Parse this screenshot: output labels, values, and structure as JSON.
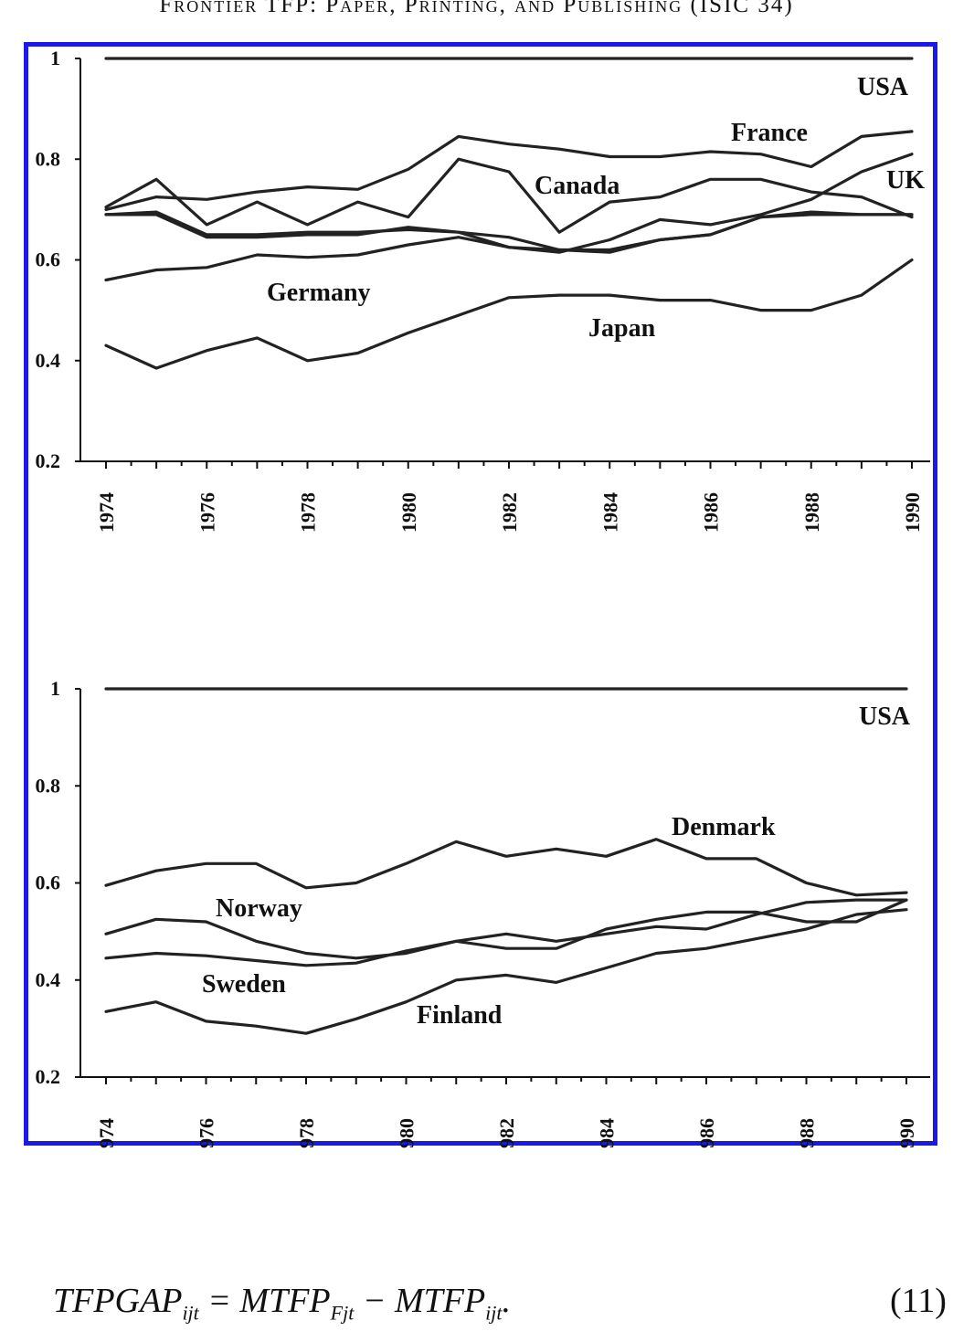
{
  "caption": "Frontier TFP: Paper, Printing, and Publishing (ISIC 34)",
  "chart_data": [
    {
      "type": "line",
      "title": "",
      "xlabel": "",
      "ylabel": "",
      "ylim": [
        0.2,
        1
      ],
      "yticks": [
        "0.2",
        "0.4",
        "0.6",
        "0.8",
        "1"
      ],
      "xtick_labels": [
        "1974",
        "1976",
        "1978",
        "1980",
        "1982",
        "1984",
        "1986",
        "1988",
        "1990"
      ],
      "x": [
        1974,
        1975,
        1976,
        1977,
        1978,
        1979,
        1980,
        1981,
        1982,
        1983,
        1984,
        1985,
        1986,
        1987,
        1988,
        1989,
        1990
      ],
      "series": [
        {
          "name": "USA",
          "values": [
            1,
            1,
            1,
            1,
            1,
            1,
            1,
            1,
            1,
            1,
            1,
            1,
            1,
            1,
            1,
            1,
            1
          ]
        },
        {
          "name": "France",
          "values": [
            0.7,
            0.725,
            0.72,
            0.735,
            0.745,
            0.74,
            0.78,
            0.845,
            0.83,
            0.82,
            0.805,
            0.805,
            0.815,
            0.81,
            0.785,
            0.845,
            0.855
          ]
        },
        {
          "name": "Canada",
          "values": [
            0.705,
            0.76,
            0.67,
            0.715,
            0.67,
            0.715,
            0.685,
            0.8,
            0.775,
            0.655,
            0.715,
            0.725,
            0.76,
            0.76,
            0.735,
            0.725,
            0.685
          ]
        },
        {
          "name": "UK",
          "values": [
            0.69,
            0.69,
            0.645,
            0.645,
            0.65,
            0.65,
            0.665,
            0.655,
            0.625,
            0.615,
            0.64,
            0.68,
            0.67,
            0.69,
            0.72,
            0.775,
            0.81
          ]
        },
        {
          "name": "",
          "values": [
            0.69,
            0.695,
            0.65,
            0.65,
            0.655,
            0.655,
            0.66,
            0.655,
            0.645,
            0.62,
            0.615,
            0.64,
            0.65,
            0.685,
            0.695,
            0.69,
            0.69
          ]
        },
        {
          "name": "Germany",
          "values": [
            0.56,
            0.58,
            0.585,
            0.61,
            0.605,
            0.61,
            0.63,
            0.645,
            0.625,
            0.62,
            0.62,
            0.64,
            0.65,
            0.685,
            0.69,
            0.69,
            0.69
          ]
        },
        {
          "name": "Japan",
          "values": [
            0.43,
            0.385,
            0.42,
            0.445,
            0.4,
            0.415,
            0.455,
            0.49,
            0.525,
            0.53,
            0.53,
            0.52,
            0.52,
            0.5,
            0.5,
            0.53,
            0.6
          ]
        }
      ]
    },
    {
      "type": "line",
      "title": "",
      "xlabel": "",
      "ylabel": "",
      "ylim": [
        0.2,
        1
      ],
      "yticks": [
        "0.2",
        "0.4",
        "0.6",
        "0.8",
        "1"
      ],
      "xtick_labels": [
        "974",
        "976",
        "978",
        "980",
        "982",
        "984",
        "986",
        "988",
        "990"
      ],
      "x": [
        1974,
        1975,
        1976,
        1977,
        1978,
        1979,
        1980,
        1981,
        1982,
        1983,
        1984,
        1985,
        1986,
        1987,
        1988,
        1989,
        1990
      ],
      "series": [
        {
          "name": "USA",
          "values": [
            1,
            1,
            1,
            1,
            1,
            1,
            1,
            1,
            1,
            1,
            1,
            1,
            1,
            1,
            1,
            1,
            1
          ]
        },
        {
          "name": "Denmark",
          "values": [
            0.595,
            0.625,
            0.64,
            0.64,
            0.59,
            0.6,
            0.64,
            0.685,
            0.655,
            0.67,
            0.655,
            0.69,
            0.65,
            0.65,
            0.6,
            0.575,
            0.58
          ]
        },
        {
          "name": "Norway",
          "values": [
            0.495,
            0.525,
            0.52,
            0.48,
            0.455,
            0.445,
            0.455,
            0.48,
            0.465,
            0.465,
            0.505,
            0.525,
            0.54,
            0.54,
            0.52,
            0.52,
            0.565
          ]
        },
        {
          "name": "Sweden",
          "values": [
            0.445,
            0.455,
            0.45,
            0.44,
            0.43,
            0.435,
            0.46,
            0.48,
            0.495,
            0.48,
            0.495,
            0.51,
            0.505,
            0.535,
            0.56,
            0.565,
            0.565
          ]
        },
        {
          "name": "Finland",
          "values": [
            0.335,
            0.355,
            0.315,
            0.305,
            0.29,
            0.32,
            0.355,
            0.4,
            0.41,
            0.395,
            0.425,
            0.455,
            0.465,
            0.485,
            0.505,
            0.535,
            0.545
          ]
        }
      ]
    }
  ],
  "equation": {
    "text": "TFPGAP",
    "sub1": "ijt",
    "eq": " = MTFP",
    "sub2": "Fjt",
    "minus": " − MTFP",
    "sub3": "ijt",
    "end": ".",
    "number": "(11)"
  }
}
